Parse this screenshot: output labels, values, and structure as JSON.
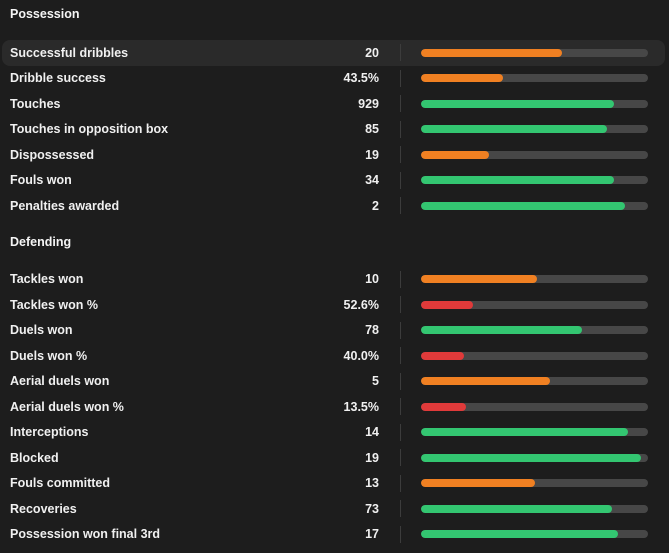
{
  "colors": {
    "good": "#33c671",
    "average": "#f08022",
    "poor": "#e03a3a",
    "track": "#474747"
  },
  "sections": [
    {
      "title": "Possession",
      "stats": [
        {
          "label": "Successful dribbles",
          "value": "20",
          "percentile": 62,
          "rating": "average",
          "highlighted": true
        },
        {
          "label": "Dribble success",
          "value": "43.5%",
          "percentile": 36,
          "rating": "average"
        },
        {
          "label": "Touches",
          "value": "929",
          "percentile": 85,
          "rating": "good"
        },
        {
          "label": "Touches in opposition box",
          "value": "85",
          "percentile": 82,
          "rating": "good"
        },
        {
          "label": "Dispossessed",
          "value": "19",
          "percentile": 30,
          "rating": "average"
        },
        {
          "label": "Fouls won",
          "value": "34",
          "percentile": 85,
          "rating": "good"
        },
        {
          "label": "Penalties awarded",
          "value": "2",
          "percentile": 90,
          "rating": "good"
        }
      ]
    },
    {
      "title": "Defending",
      "stats": [
        {
          "label": "Tackles won",
          "value": "10",
          "percentile": 51,
          "rating": "average"
        },
        {
          "label": "Tackles won %",
          "value": "52.6%",
          "percentile": 23,
          "rating": "poor"
        },
        {
          "label": "Duels won",
          "value": "78",
          "percentile": 71,
          "rating": "good"
        },
        {
          "label": "Duels won %",
          "value": "40.0%",
          "percentile": 19,
          "rating": "poor"
        },
        {
          "label": "Aerial duels won",
          "value": "5",
          "percentile": 57,
          "rating": "average"
        },
        {
          "label": "Aerial duels won %",
          "value": "13.5%",
          "percentile": 20,
          "rating": "poor"
        },
        {
          "label": "Interceptions",
          "value": "14",
          "percentile": 91,
          "rating": "good"
        },
        {
          "label": "Blocked",
          "value": "19",
          "percentile": 97,
          "rating": "good"
        },
        {
          "label": "Fouls committed",
          "value": "13",
          "percentile": 50,
          "rating": "average"
        },
        {
          "label": "Recoveries",
          "value": "73",
          "percentile": 84,
          "rating": "good"
        },
        {
          "label": "Possession won final 3rd",
          "value": "17",
          "percentile": 87,
          "rating": "good"
        }
      ]
    }
  ]
}
